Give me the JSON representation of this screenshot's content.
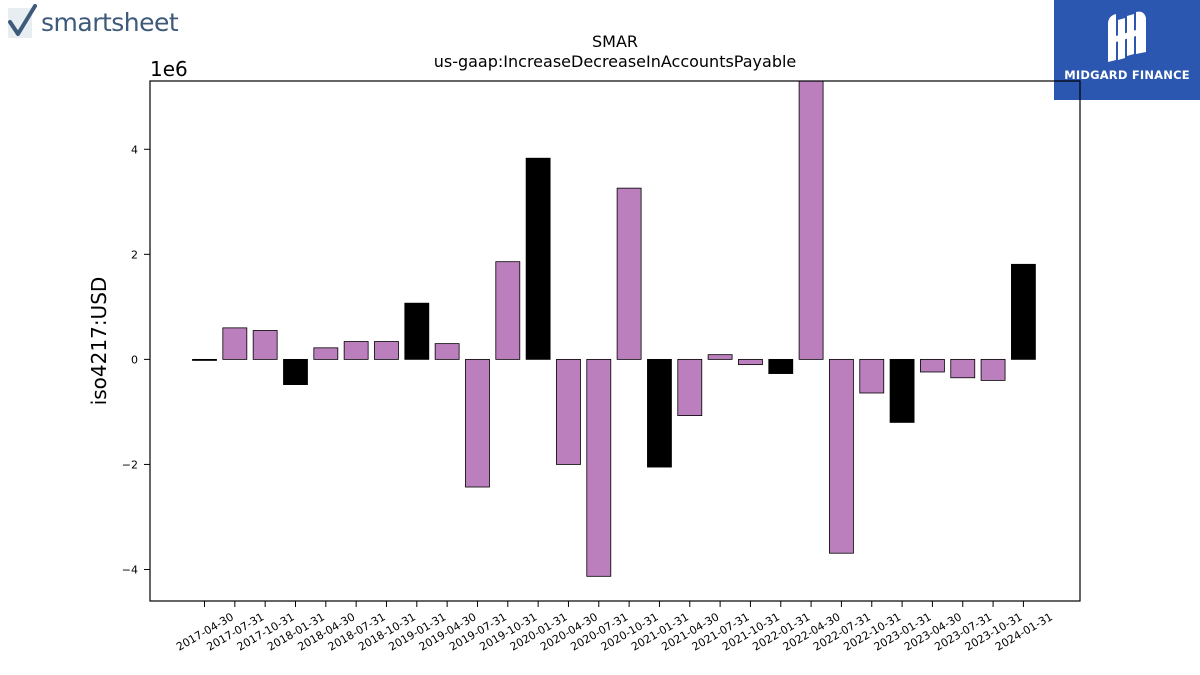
{
  "branding": {
    "left_logo_text": "smartsheet",
    "right_logo_text": "MIDGARD FINANCE",
    "accent_color": "#2b57b0"
  },
  "chart_data": {
    "type": "bar",
    "title": "SMAR",
    "subtitle": "us-gaap:IncreaseDecreaseInAccountsPayable",
    "ylabel": "iso4217:USD",
    "xlabel": "",
    "y_multiplier_label": "1e6",
    "ylim": [
      -4.6,
      5.3
    ],
    "yticks": [
      -4,
      -2,
      0,
      2,
      4
    ],
    "ytick_labels": [
      "−4",
      "−2",
      "0",
      "2",
      "4"
    ],
    "grid": false,
    "colors": {
      "quarter": "#bb7fbd",
      "annual": "#000000"
    },
    "categories": [
      "2017-04-30",
      "2017-07-31",
      "2017-10-31",
      "2018-01-31",
      "2018-04-30",
      "2018-07-31",
      "2018-10-31",
      "2019-01-31",
      "2019-04-30",
      "2019-07-31",
      "2019-10-31",
      "2020-01-31",
      "2020-04-30",
      "2020-07-31",
      "2020-10-31",
      "2021-01-31",
      "2021-04-30",
      "2021-07-31",
      "2021-10-31",
      "2022-01-31",
      "2022-04-30",
      "2022-07-31",
      "2022-10-31",
      "2023-01-31",
      "2023-04-30",
      "2023-07-31",
      "2023-10-31",
      "2024-01-31"
    ],
    "values": [
      -0.02,
      0.6,
      0.55,
      -0.48,
      0.22,
      0.34,
      0.34,
      1.07,
      0.3,
      -2.43,
      1.86,
      3.83,
      -2.0,
      -4.13,
      3.26,
      -2.05,
      -1.07,
      0.09,
      -0.1,
      -0.27,
      5.35,
      -3.69,
      -0.64,
      -1.2,
      -0.24,
      -0.35,
      -0.4,
      1.81
    ],
    "annual": [
      true,
      false,
      false,
      true,
      false,
      false,
      false,
      true,
      false,
      false,
      false,
      true,
      false,
      false,
      false,
      true,
      false,
      false,
      false,
      true,
      false,
      false,
      false,
      true,
      false,
      false,
      false,
      true
    ]
  }
}
